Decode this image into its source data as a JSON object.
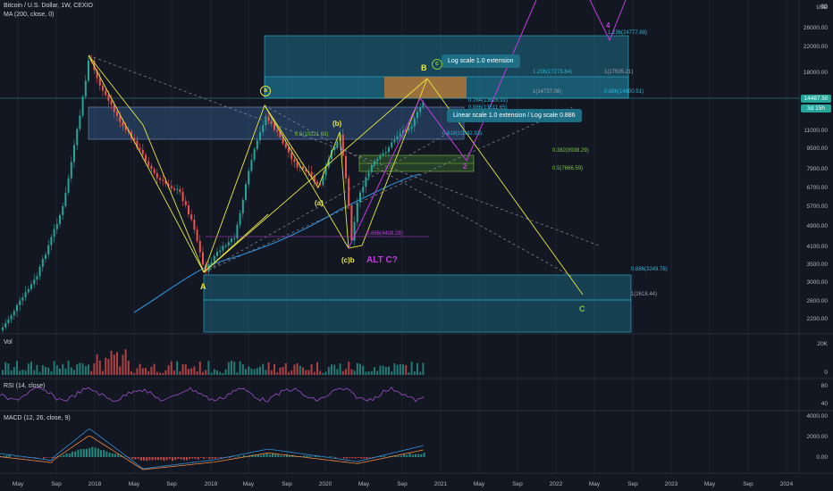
{
  "header": {
    "symbol": "Bitcoin / U.S. Dollar, 1W, CEXIO",
    "ma": "MA (200, close, 0)"
  },
  "panes": {
    "vol": "Vol",
    "rsi": "RSI (14, close)",
    "macd": "MACD (12, 26, close, 9)"
  },
  "currency": "USD",
  "price_axis": [
    "32000.00",
    "26000.00",
    "22000.00",
    "18000.00",
    "11000.00",
    "9500.00",
    "7900.00",
    "6700.00",
    "5700.00",
    "4900.00",
    "4100.00",
    "3500.00",
    "3000.00",
    "2600.00",
    "2200.00"
  ],
  "price_badges": {
    "last": "14487.50",
    "countdown": "3d 15h",
    "top": "32"
  },
  "vol_axis": [
    "20K",
    "0"
  ],
  "rsi_axis": [
    "80",
    "40"
  ],
  "macd_axis": [
    "4000.00",
    "2000.00",
    "0.00"
  ],
  "time_axis": [
    "May",
    "Sep",
    "2018",
    "May",
    "Sep",
    "2019",
    "May",
    "Sep",
    "2020",
    "May",
    "Sep",
    "2021",
    "May",
    "Sep",
    "2022",
    "May",
    "Sep",
    "2023",
    "May",
    "Sep",
    "2024"
  ],
  "notes": {
    "log_ext": "Log scale 1.0 extension",
    "lin_ext": "Linear scale 1.0 extension / Log scale 0.886"
  },
  "fib_labels": {
    "f1236b": "1.236(24777.88)",
    "f1236a": "1.236(17273.84)",
    "f1_17505": "1(17505.21)",
    "f1_14737": "1(14737.08)",
    "f0886_14800": "0.886(14800.51)",
    "f0764": "0.764(13626.91)",
    "f0886_13511": "0.886(13511.65)",
    "f05_10221": "0.5(10221.63)",
    "f0618": "0.618(10342.93)",
    "f0382": "0.382(8938.29)",
    "f05_7666": "0.5(7666.59)",
    "f0886_4408": "0.886(4408.28)",
    "f0886_3249": "0.886(3249.78)",
    "f1_2618": "1(2618.44)"
  },
  "waves": {
    "A": "A",
    "B": "B",
    "C": "C",
    "a": "a",
    "c_circ": "c",
    "b_paren": "(b)",
    "a_paren": "(a)",
    "cb": "(c)b",
    "alt": "ALT C?",
    "n2": "2",
    "n4": "4"
  },
  "colors": {
    "bg": "#131722",
    "up": "#26a69a",
    "down": "#ef5350",
    "wave_yellow": "#e8e83a",
    "wave_magenta": "#c43ae0",
    "ma": "#2f8fd8",
    "fib_teal": "#2bb6d8",
    "fib_green": "#7ec83c"
  }
}
